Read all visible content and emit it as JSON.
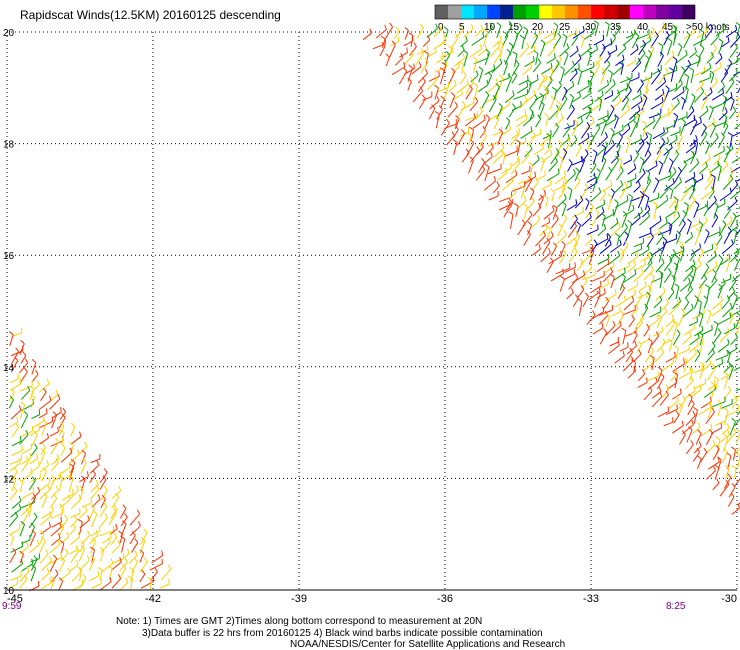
{
  "title": "Rapidscat Winds(12.5KM) 20160125 descending",
  "legend": {
    "swatches": [
      {
        "color": "#606060"
      },
      {
        "color": "#a0a0a0"
      },
      {
        "color": "#00e5ff"
      },
      {
        "color": "#00a8ff"
      },
      {
        "color": "#0044ff"
      },
      {
        "color": "#002090"
      },
      {
        "color": "#00a000"
      },
      {
        "color": "#00d000"
      },
      {
        "color": "#ffff00"
      },
      {
        "color": "#ffc800"
      },
      {
        "color": "#ff9000"
      },
      {
        "color": "#ff5000"
      },
      {
        "color": "#ff0000"
      },
      {
        "color": "#d00000"
      },
      {
        "color": "#a00000"
      },
      {
        "color": "#ff00ff"
      },
      {
        "color": "#c000c0"
      },
      {
        "color": "#8000a0"
      },
      {
        "color": "#6000a0"
      },
      {
        "color": "#400060"
      }
    ],
    "labels": [
      "0",
      "5",
      "10",
      "15",
      "20",
      "25",
      "30",
      "35",
      "40",
      "45",
      ">50 knots"
    ]
  },
  "map": {
    "lon_labels": [
      "-45",
      "-42",
      "-39",
      "-36",
      "-33",
      "-30"
    ],
    "lat_labels": [
      "20",
      "18",
      "16",
      "14",
      "12",
      "10"
    ],
    "time_left": "9:59",
    "time_right": "8:25"
  },
  "notes": {
    "line1": "Note: 1) Times are GMT 2)Times along bottom correspond to measurement at 20N",
    "line2": "3)Data buffer is 22 hrs from 20160125 4) Black wind barbs indicate possible contamination",
    "line3": "NOAA/NESDIS/Center for Satellite Applications and Research"
  },
  "colors": {
    "grid": "#000000",
    "time_label": "#800080",
    "wind_low": "#00a000",
    "wind_mid": "#ffd000",
    "wind_high": "#ff3000",
    "wind_calm": "#0000c0"
  }
}
